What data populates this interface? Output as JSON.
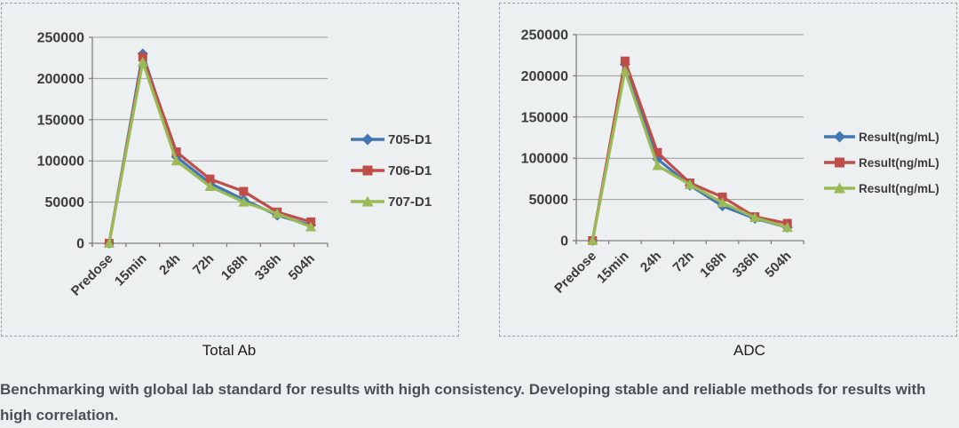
{
  "panels": [
    {
      "caption": "Total Ab"
    },
    {
      "caption": "ADC"
    }
  ],
  "footer": {
    "text": "Benchmarking with global lab standard for results with high consistency. Developing stable and reliable methods for results with high correlation."
  },
  "theme": {
    "background": "#edf0f1",
    "panel_border": "#98a2ae",
    "gridline": "#9b9b9b",
    "axis_line": "#7f7f7f",
    "axis_text": "#3c3c3c",
    "caption_text": "#1c1c1c",
    "footer_text": "#4c5056",
    "series_blue": "#4276b4",
    "series_red": "#bf4e4b",
    "series_green": "#9aba57"
  },
  "chart_data": [
    {
      "type": "line",
      "title": "Total Ab",
      "xlabel": "",
      "ylabel": "",
      "categories": [
        "Predose",
        "15min",
        "24h",
        "72h",
        "168h",
        "336h",
        "504h"
      ],
      "yticks": [
        0,
        50000,
        100000,
        150000,
        200000,
        250000
      ],
      "ytick_labels": [
        "0",
        "50000",
        "100000",
        "150000",
        "200000",
        "250000"
      ],
      "ylim": [
        0,
        250000
      ],
      "grid": true,
      "legend_position": "right",
      "series": [
        {
          "name": "705-D1",
          "marker": "diamond",
          "color": "#4276b4",
          "values": [
            0,
            230000,
            105000,
            73000,
            53000,
            34000,
            22000
          ]
        },
        {
          "name": "706-D1",
          "marker": "square",
          "color": "#bf4e4b",
          "values": [
            0,
            226000,
            111000,
            78000,
            63000,
            38000,
            26000
          ]
        },
        {
          "name": "707-D1",
          "marker": "triangle",
          "color": "#9aba57",
          "values": [
            0,
            220000,
            100000,
            69000,
            50000,
            36000,
            20000
          ]
        }
      ]
    },
    {
      "type": "line",
      "title": "ADC",
      "xlabel": "",
      "ylabel": "",
      "categories": [
        "Predose",
        "15min",
        "24h",
        "72h",
        "168h",
        "336h",
        "504h"
      ],
      "yticks": [
        0,
        50000,
        100000,
        150000,
        200000,
        250000
      ],
      "ytick_labels": [
        "0",
        "50000",
        "100000",
        "150000",
        "200000",
        "250000"
      ],
      "ylim": [
        0,
        250000
      ],
      "grid": true,
      "legend_position": "right",
      "series": [
        {
          "name": "Result(ng/mL)",
          "marker": "diamond",
          "color": "#4276b4",
          "values": [
            0,
            214000,
            99000,
            67000,
            42000,
            27000,
            16000
          ]
        },
        {
          "name": "Result(ng/mL)",
          "marker": "square",
          "color": "#bf4e4b",
          "values": [
            0,
            218000,
            107000,
            70000,
            53000,
            29000,
            21000
          ]
        },
        {
          "name": "Result(ng/mL)",
          "marker": "triangle",
          "color": "#9aba57",
          "values": [
            0,
            206000,
            91000,
            68000,
            46000,
            28000,
            16000
          ]
        }
      ]
    }
  ]
}
